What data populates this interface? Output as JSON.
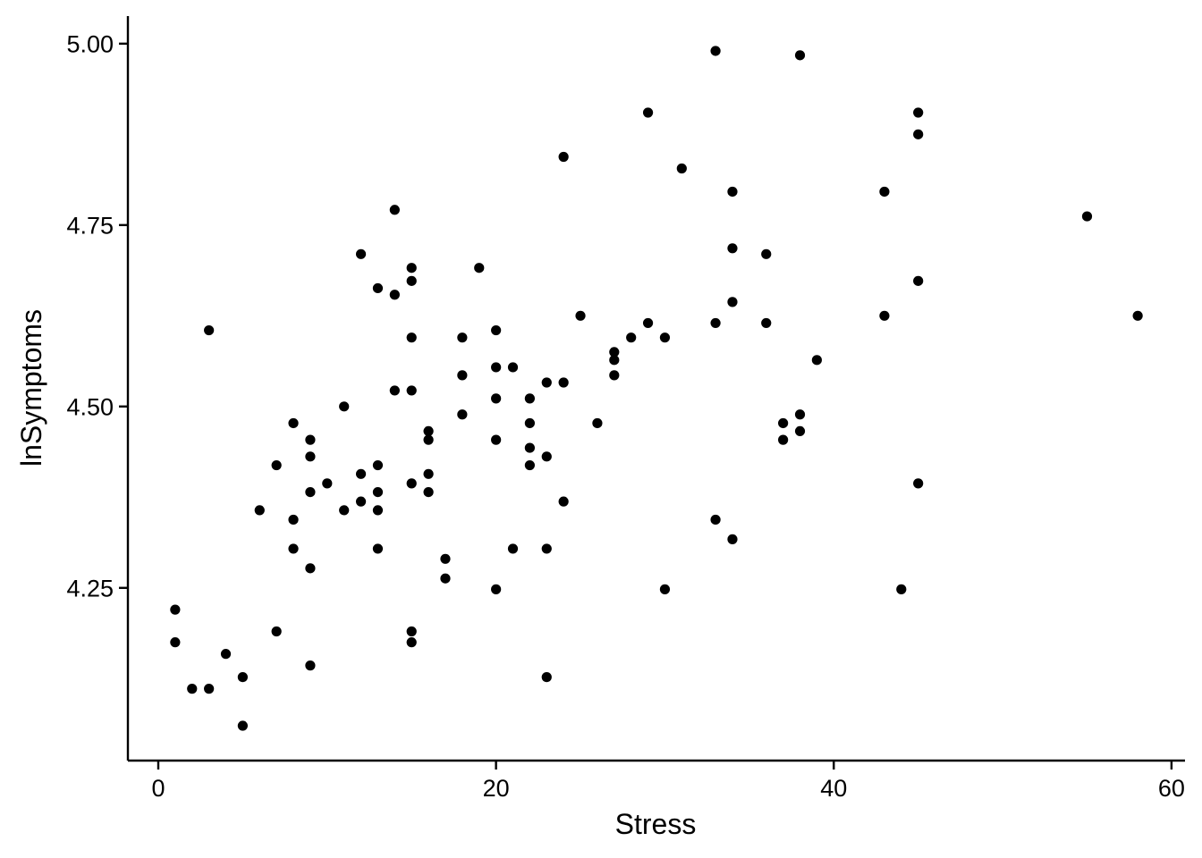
{
  "chart_data": {
    "type": "scatter",
    "xlabel": "Stress",
    "ylabel": "lnSymptoms",
    "xlim": [
      -1.8,
      60.8
    ],
    "ylim": [
      4.012,
      5.038
    ],
    "x_ticks": [
      {
        "value": 0,
        "label": "0"
      },
      {
        "value": 20,
        "label": "20"
      },
      {
        "value": 40,
        "label": "40"
      },
      {
        "value": 60,
        "label": "60"
      }
    ],
    "y_ticks": [
      {
        "value": 4.25,
        "label": "4.25"
      },
      {
        "value": 4.5,
        "label": "4.50"
      },
      {
        "value": 4.75,
        "label": "4.75"
      },
      {
        "value": 5.0,
        "label": "5.00"
      }
    ],
    "grid": false,
    "legend": "none",
    "point_color": "#000000",
    "points": [
      {
        "x": 1,
        "y": 4.22
      },
      {
        "x": 1,
        "y": 4.175
      },
      {
        "x": 2,
        "y": 4.111
      },
      {
        "x": 3,
        "y": 4.111
      },
      {
        "x": 3,
        "y": 4.605
      },
      {
        "x": 4,
        "y": 4.159
      },
      {
        "x": 5,
        "y": 4.127
      },
      {
        "x": 5,
        "y": 4.06
      },
      {
        "x": 6,
        "y": 4.357
      },
      {
        "x": 7,
        "y": 4.419
      },
      {
        "x": 7,
        "y": 4.19
      },
      {
        "x": 8,
        "y": 4.477
      },
      {
        "x": 8,
        "y": 4.344
      },
      {
        "x": 8,
        "y": 4.304
      },
      {
        "x": 9,
        "y": 4.454
      },
      {
        "x": 9,
        "y": 4.431
      },
      {
        "x": 9,
        "y": 4.382
      },
      {
        "x": 9,
        "y": 4.277
      },
      {
        "x": 9,
        "y": 4.143
      },
      {
        "x": 10,
        "y": 4.394
      },
      {
        "x": 11,
        "y": 4.5
      },
      {
        "x": 11,
        "y": 4.357
      },
      {
        "x": 12,
        "y": 4.71
      },
      {
        "x": 12,
        "y": 4.407
      },
      {
        "x": 12,
        "y": 4.369
      },
      {
        "x": 13,
        "y": 4.663
      },
      {
        "x": 13,
        "y": 4.419
      },
      {
        "x": 13,
        "y": 4.382
      },
      {
        "x": 13,
        "y": 4.357
      },
      {
        "x": 13,
        "y": 4.304
      },
      {
        "x": 14,
        "y": 4.771
      },
      {
        "x": 14,
        "y": 4.654
      },
      {
        "x": 14,
        "y": 4.522
      },
      {
        "x": 15,
        "y": 4.691
      },
      {
        "x": 15,
        "y": 4.673
      },
      {
        "x": 15,
        "y": 4.595
      },
      {
        "x": 15,
        "y": 4.522
      },
      {
        "x": 15,
        "y": 4.394
      },
      {
        "x": 15,
        "y": 4.19
      },
      {
        "x": 15,
        "y": 4.175
      },
      {
        "x": 16,
        "y": 4.466
      },
      {
        "x": 16,
        "y": 4.454
      },
      {
        "x": 16,
        "y": 4.407
      },
      {
        "x": 16,
        "y": 4.382
      },
      {
        "x": 17,
        "y": 4.29
      },
      {
        "x": 17,
        "y": 4.263
      },
      {
        "x": 18,
        "y": 4.595
      },
      {
        "x": 18,
        "y": 4.543
      },
      {
        "x": 18,
        "y": 4.489
      },
      {
        "x": 19,
        "y": 4.691
      },
      {
        "x": 20,
        "y": 4.605
      },
      {
        "x": 20,
        "y": 4.554
      },
      {
        "x": 20,
        "y": 4.511
      },
      {
        "x": 20,
        "y": 4.454
      },
      {
        "x": 20,
        "y": 4.248
      },
      {
        "x": 21,
        "y": 4.554
      },
      {
        "x": 21,
        "y": 4.304
      },
      {
        "x": 22,
        "y": 4.511
      },
      {
        "x": 22,
        "y": 4.477
      },
      {
        "x": 22,
        "y": 4.443
      },
      {
        "x": 22,
        "y": 4.419
      },
      {
        "x": 23,
        "y": 4.533
      },
      {
        "x": 23,
        "y": 4.431
      },
      {
        "x": 23,
        "y": 4.304
      },
      {
        "x": 23,
        "y": 4.127
      },
      {
        "x": 24,
        "y": 4.844
      },
      {
        "x": 24,
        "y": 4.533
      },
      {
        "x": 24,
        "y": 4.369
      },
      {
        "x": 25,
        "y": 4.625
      },
      {
        "x": 26,
        "y": 4.477
      },
      {
        "x": 27,
        "y": 4.575
      },
      {
        "x": 27,
        "y": 4.564
      },
      {
        "x": 27,
        "y": 4.543
      },
      {
        "x": 28,
        "y": 4.595
      },
      {
        "x": 29,
        "y": 4.905
      },
      {
        "x": 29,
        "y": 4.615
      },
      {
        "x": 30,
        "y": 4.595
      },
      {
        "x": 30,
        "y": 4.248
      },
      {
        "x": 31,
        "y": 4.828
      },
      {
        "x": 33,
        "y": 4.99
      },
      {
        "x": 33,
        "y": 4.615
      },
      {
        "x": 33,
        "y": 4.344
      },
      {
        "x": 34,
        "y": 4.796
      },
      {
        "x": 34,
        "y": 4.718
      },
      {
        "x": 34,
        "y": 4.644
      },
      {
        "x": 34,
        "y": 4.317
      },
      {
        "x": 36,
        "y": 4.71
      },
      {
        "x": 36,
        "y": 4.615
      },
      {
        "x": 37,
        "y": 4.477
      },
      {
        "x": 37,
        "y": 4.454
      },
      {
        "x": 38,
        "y": 4.984
      },
      {
        "x": 38,
        "y": 4.489
      },
      {
        "x": 38,
        "y": 4.466
      },
      {
        "x": 39,
        "y": 4.564
      },
      {
        "x": 43,
        "y": 4.796
      },
      {
        "x": 43,
        "y": 4.625
      },
      {
        "x": 44,
        "y": 4.248
      },
      {
        "x": 45,
        "y": 4.905
      },
      {
        "x": 45,
        "y": 4.875
      },
      {
        "x": 45,
        "y": 4.673
      },
      {
        "x": 45,
        "y": 4.394
      },
      {
        "x": 55,
        "y": 4.762
      },
      {
        "x": 58,
        "y": 4.625
      }
    ]
  }
}
